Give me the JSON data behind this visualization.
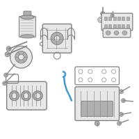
{
  "background_color": "#ffffff",
  "fig_width": 2.0,
  "fig_height": 2.0,
  "dpi": 100,
  "colors": {
    "outline": "#808080",
    "light_gray": "#d0d0d0",
    "medium_gray": "#b0b0b0",
    "dark_gray": "#888888",
    "fill_light": "#e8e8e8",
    "fill_white": "#f5f5f5",
    "dipstick_blue": "#4499cc",
    "hatch_gray": "#aaaaaa"
  },
  "layout": {
    "xlim": [
      0,
      200
    ],
    "ylim": [
      0,
      200
    ]
  }
}
